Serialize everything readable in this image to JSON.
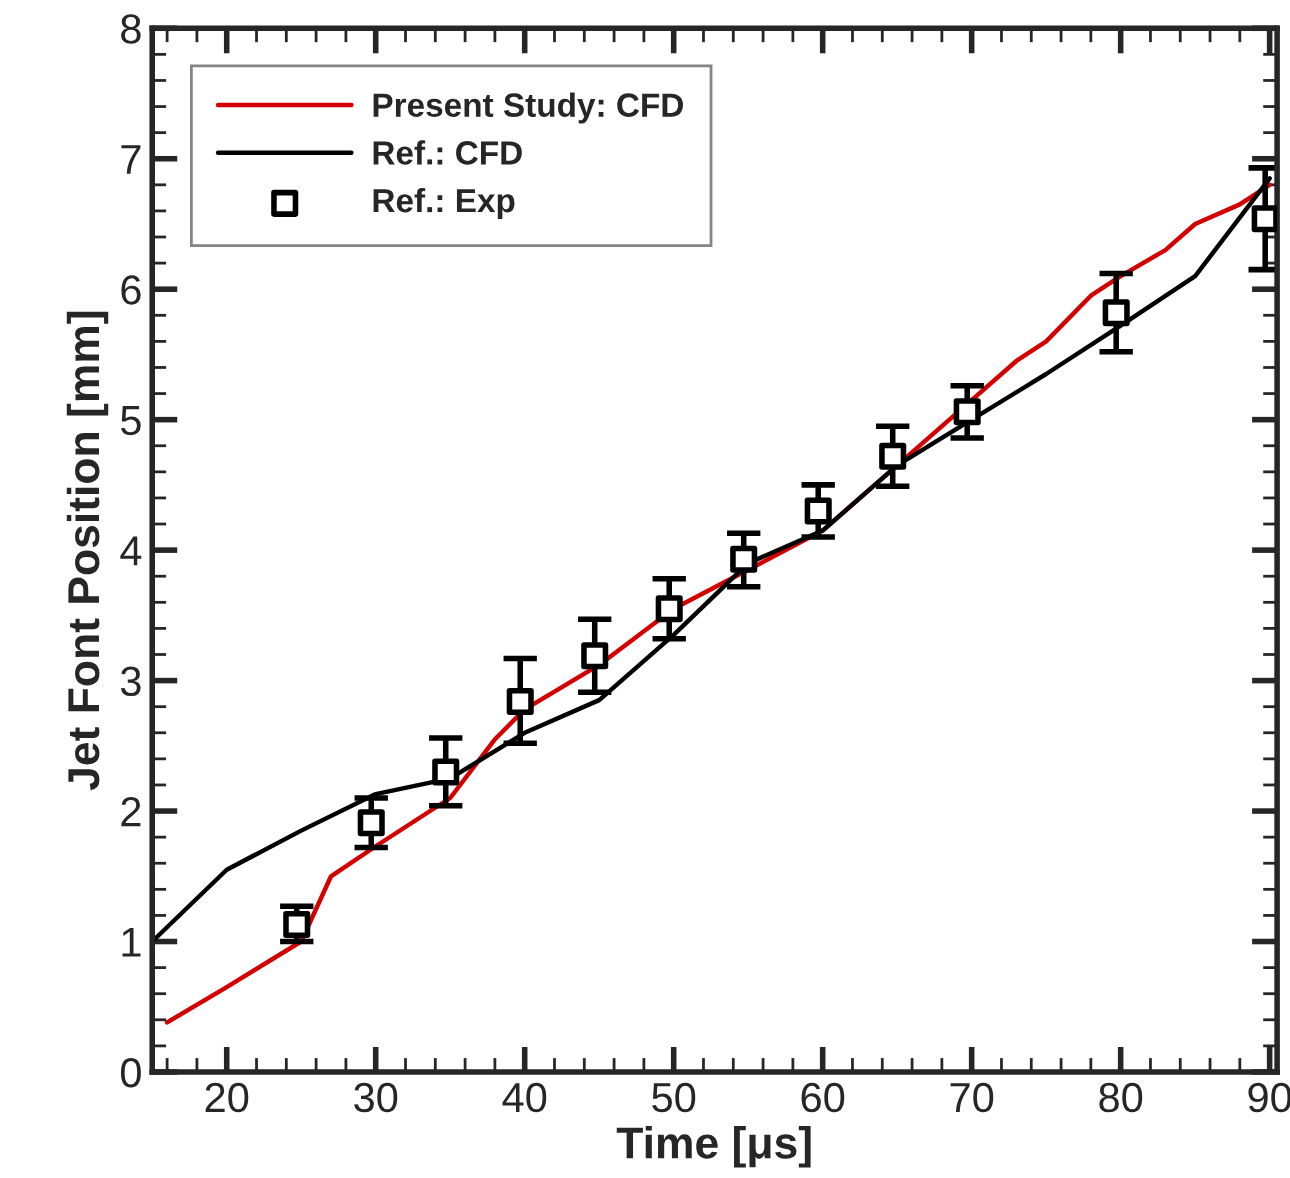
{
  "chart_data": {
    "type": "line",
    "xlabel": "Time [μs]",
    "ylabel": "Jet Font Position [mm]",
    "xlim": [
      15,
      90.5
    ],
    "xticks": [
      20,
      30,
      40,
      50,
      60,
      70,
      80,
      90
    ],
    "ylim": [
      0,
      8
    ],
    "yticks": [
      0,
      1,
      2,
      3,
      4,
      5,
      6,
      7,
      8
    ],
    "grid": false,
    "legend": "top left",
    "series": [
      {
        "name": "Present Study: CFD",
        "color": "#d40000",
        "marker": "none",
        "x": [
          16,
          20,
          25,
          27,
          30,
          35,
          38,
          40,
          45,
          50,
          55,
          60,
          65,
          70,
          73,
          75,
          78,
          80,
          83,
          85,
          88,
          90
        ],
        "values": [
          0.38,
          0.65,
          1.0,
          1.5,
          1.73,
          2.1,
          2.55,
          2.78,
          3.12,
          3.55,
          3.85,
          4.15,
          4.65,
          5.15,
          5.45,
          5.6,
          5.95,
          6.1,
          6.3,
          6.5,
          6.65,
          6.8
        ]
      },
      {
        "name": "Ref.: CFD",
        "color": "#000000",
        "marker": "none",
        "x": [
          15,
          20,
          25,
          30,
          35,
          40,
          45,
          50,
          55,
          60,
          65,
          70,
          75,
          80,
          85,
          90
        ],
        "values": [
          1.0,
          1.55,
          1.85,
          2.13,
          2.25,
          2.6,
          2.85,
          3.35,
          3.9,
          4.15,
          4.65,
          5.0,
          5.35,
          5.72,
          6.1,
          6.85
        ]
      },
      {
        "name": "Ref.: Exp",
        "type": "scatter",
        "color": "#000000",
        "marker": "square",
        "x": [
          24.7,
          29.7,
          34.7,
          39.7,
          44.7,
          49.7,
          54.7,
          59.7,
          64.7,
          69.7,
          79.7,
          89.7
        ],
        "values": [
          1.13,
          1.91,
          2.3,
          2.84,
          3.19,
          3.55,
          3.93,
          4.3,
          4.72,
          5.06,
          5.82,
          6.54
        ],
        "errors": [
          [
            1.0,
            1.27
          ],
          [
            1.72,
            2.1
          ],
          [
            2.04,
            2.56
          ],
          [
            2.52,
            3.17
          ],
          [
            2.91,
            3.47
          ],
          [
            3.32,
            3.78
          ],
          [
            3.72,
            4.13
          ],
          [
            4.1,
            4.5
          ],
          [
            4.49,
            4.95
          ],
          [
            4.86,
            5.26
          ],
          [
            5.52,
            6.12
          ],
          [
            6.15,
            6.93
          ]
        ]
      }
    ]
  }
}
